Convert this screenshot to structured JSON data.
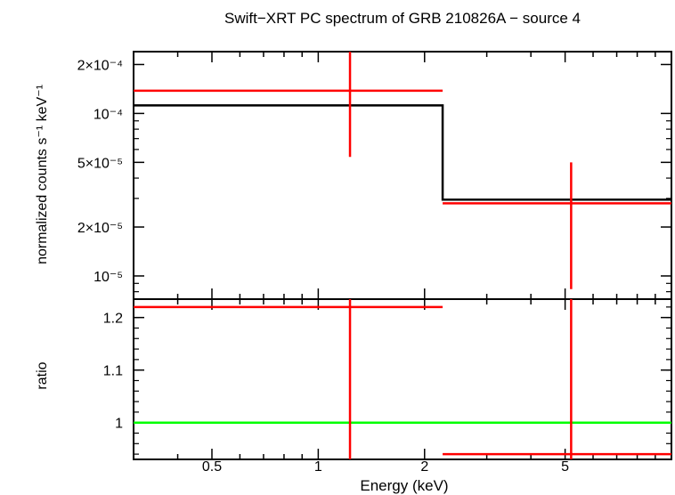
{
  "chart_data": [
    {
      "type": "line",
      "title": "Swift−XRT PC spectrum of GRB 210826A − source 4",
      "ylabel": "normalized counts s⁻¹ keV⁻¹",
      "xlabel": "",
      "xscale": "log",
      "yscale": "log",
      "xlim": [
        0.3,
        10
      ],
      "ylim": [
        7.2e-06,
        0.00024
      ],
      "yticks": [
        {
          "value": 0.0002,
          "label": "2×10⁻⁴"
        },
        {
          "value": 0.0001,
          "label": "10⁻⁴"
        },
        {
          "value": 5e-05,
          "label": "5×10⁻⁵"
        },
        {
          "value": 2e-05,
          "label": "2×10⁻⁵"
        },
        {
          "value": 1e-05,
          "label": "10⁻⁵"
        }
      ],
      "data_points": {
        "color": "#ff0000",
        "points": [
          {
            "x": 1.23,
            "xlo": 0.3,
            "xhi": 2.25,
            "y": 0.000138,
            "ylo": 5.4e-05,
            "yhi": 0.00024
          },
          {
            "x": 5.2,
            "xlo": 2.25,
            "xhi": 10,
            "y": 2.8e-05,
            "ylo": 8.3e-06,
            "yhi": 5e-05
          }
        ]
      },
      "model": {
        "color": "#000000",
        "steps": [
          {
            "xlo": 0.3,
            "xhi": 2.25,
            "y": 0.000112
          },
          {
            "xlo": 2.25,
            "xhi": 10,
            "y": 2.95e-05
          }
        ]
      }
    },
    {
      "type": "line",
      "ylabel": "ratio",
      "xlabel": "Energy (keV)",
      "xscale": "log",
      "xlim": [
        0.3,
        10
      ],
      "ylim": [
        0.93,
        1.235
      ],
      "xticks": [
        {
          "value": 0.5,
          "label": "0.5"
        },
        {
          "value": 1,
          "label": "1"
        },
        {
          "value": 2,
          "label": "2"
        },
        {
          "value": 5,
          "label": "5"
        }
      ],
      "yticks": [
        {
          "value": 1.2,
          "label": "1.2"
        },
        {
          "value": 1.1,
          "label": "1.1"
        },
        {
          "value": 1,
          "label": "1"
        }
      ],
      "reference_line": {
        "y": 1,
        "color": "#00ff00"
      },
      "data_points": {
        "color": "#ff0000",
        "points": [
          {
            "x": 1.23,
            "xlo": 0.3,
            "xhi": 2.25,
            "y": 1.22,
            "ylo": 0.93,
            "yhi": 1.235
          },
          {
            "x": 5.2,
            "xlo": 2.25,
            "xhi": 10,
            "y": 0.94,
            "ylo": 0.93,
            "yhi": 1.235
          }
        ]
      }
    }
  ]
}
